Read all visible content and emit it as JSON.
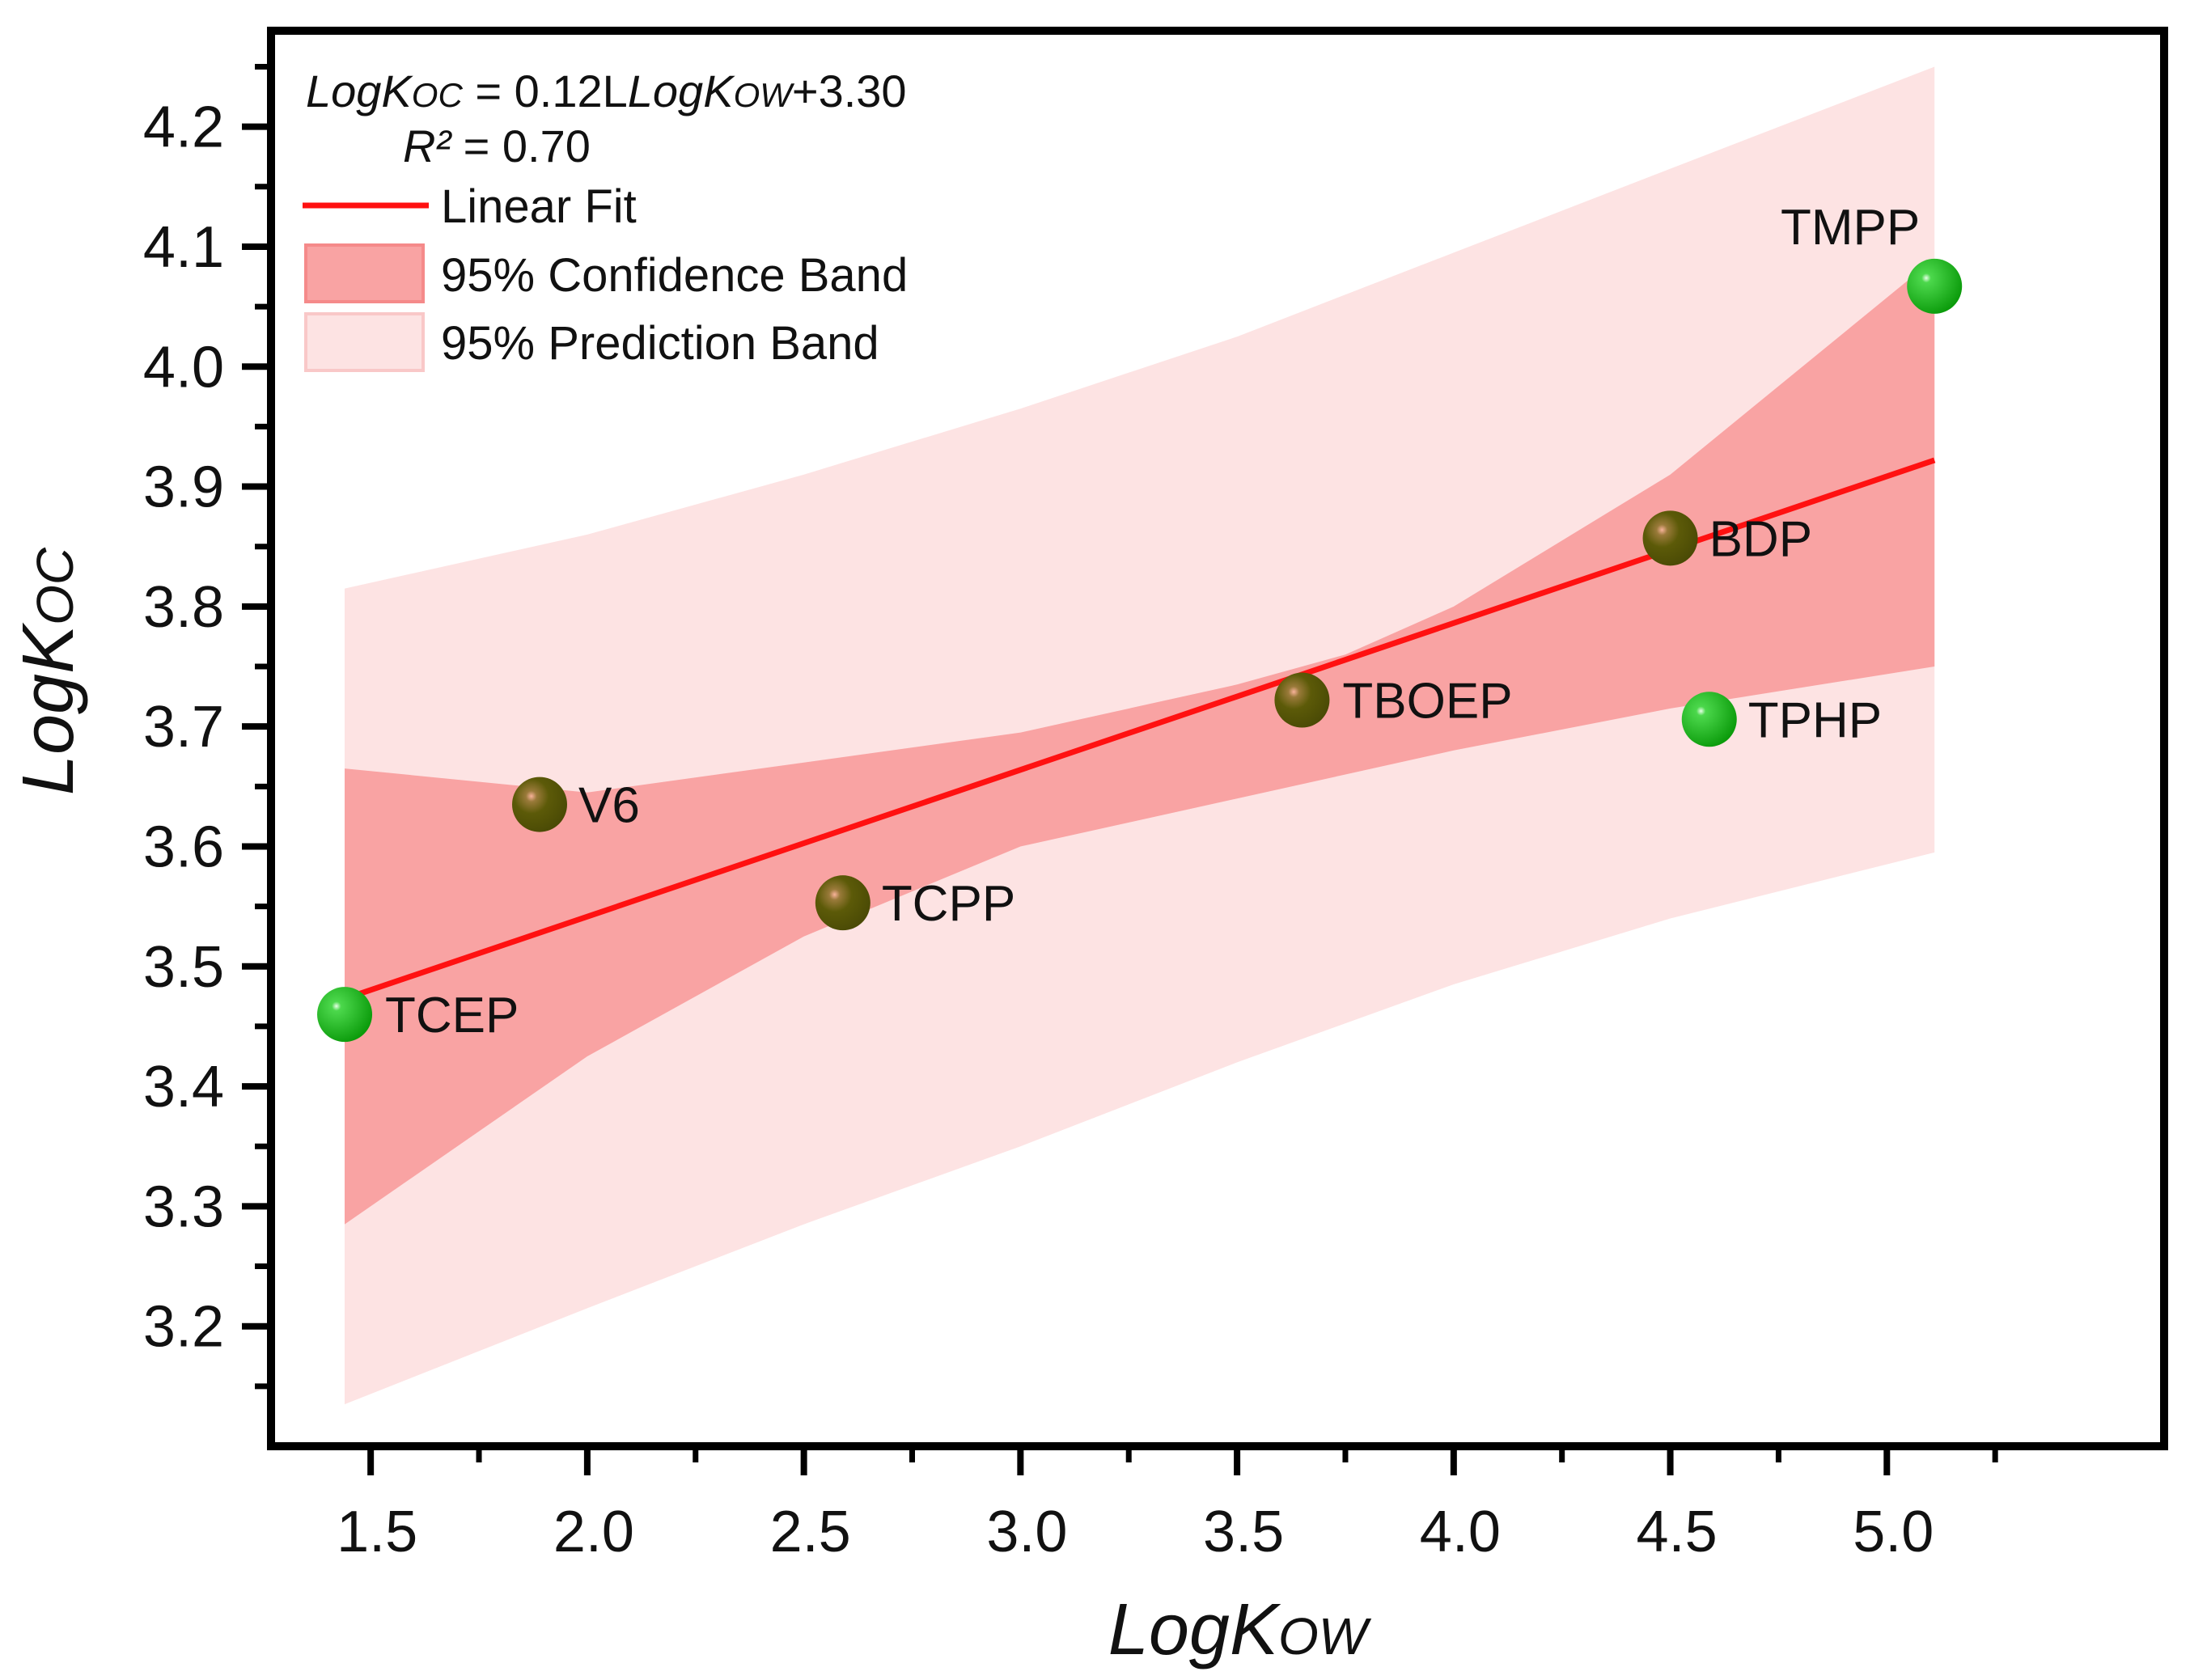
{
  "chart_data": {
    "type": "scatter",
    "x_axis": {
      "title_main": "LogK",
      "title_sub": "OW",
      "range": [
        1.27,
        5.64
      ],
      "ticks": [
        "1.5",
        "2.0",
        "2.5",
        "3.0",
        "3.5",
        "4.0",
        "4.5",
        "5.0"
      ],
      "tick_values": [
        1.5,
        2.0,
        2.5,
        3.0,
        3.5,
        4.0,
        4.5,
        5.0
      ]
    },
    "y_axis": {
      "title_main": "LogK",
      "title_sub": "OC",
      "range": [
        3.1,
        4.28
      ],
      "ticks": [
        "3.2",
        "3.3",
        "3.4",
        "3.5",
        "3.6",
        "3.7",
        "3.8",
        "3.9",
        "4.0",
        "4.1",
        "4.2"
      ],
      "tick_values": [
        3.2,
        3.3,
        3.4,
        3.5,
        3.6,
        3.7,
        3.8,
        3.9,
        4.0,
        4.1,
        4.2
      ]
    },
    "points": [
      {
        "label": "TCEP",
        "x": 1.44,
        "y": 3.46,
        "style": "green"
      },
      {
        "label": "V6",
        "x": 1.89,
        "y": 3.635,
        "style": "olive"
      },
      {
        "label": "TCPP",
        "x": 2.59,
        "y": 3.553,
        "style": "olive"
      },
      {
        "label": "TBOEP",
        "x": 3.65,
        "y": 3.722,
        "style": "olive"
      },
      {
        "label": "BDP",
        "x": 4.5,
        "y": 3.857,
        "style": "olive"
      },
      {
        "label": "TPHP",
        "x": 4.59,
        "y": 3.706,
        "style": "green"
      },
      {
        "label": "TMPP",
        "x": 5.11,
        "y": 4.067,
        "style": "green"
      }
    ],
    "fit_line": {
      "x": [
        1.44,
        5.11
      ],
      "y": [
        3.473,
        3.922
      ]
    },
    "confidence_band": {
      "x": [
        1.44,
        2.0,
        2.5,
        3.0,
        3.5,
        3.75,
        4.0,
        4.5,
        5.11
      ],
      "upper": [
        3.665,
        3.645,
        3.67,
        3.695,
        3.735,
        3.76,
        3.8,
        3.91,
        4.09
      ],
      "lower": [
        3.285,
        3.425,
        3.525,
        3.6,
        3.64,
        3.66,
        3.68,
        3.715,
        3.75
      ]
    },
    "prediction_band": {
      "x": [
        1.44,
        2.0,
        2.5,
        3.0,
        3.5,
        4.0,
        4.5,
        5.11
      ],
      "upper": [
        3.815,
        3.86,
        3.91,
        3.965,
        4.025,
        4.095,
        4.165,
        4.25
      ],
      "lower": [
        3.135,
        3.215,
        3.285,
        3.35,
        3.42,
        3.485,
        3.54,
        3.595
      ]
    },
    "legend": {
      "equation_left": "LogK",
      "equation_left_sub": "OC",
      "equation_mid": " = 0.12L",
      "equation_right": "LogK",
      "equation_right_sub": "OW",
      "equation_end": "+3.30",
      "r2_label": "R²",
      "r2_value": " = 0.70",
      "entries": [
        {
          "label": "Linear Fit",
          "kind": "line"
        },
        {
          "label": "95% Confidence Band",
          "kind": "band-dark"
        },
        {
          "label": "95% Prediction Band",
          "kind": "band-light"
        }
      ]
    },
    "colors": {
      "fit_line": "#ff1111",
      "confidence_band": "#f9a3a3",
      "prediction_band": "#fde3e3",
      "point_green": "#12a812",
      "point_olive": "#5a5a07",
      "point_highlight": "#f4a58f"
    },
    "grid": false
  }
}
